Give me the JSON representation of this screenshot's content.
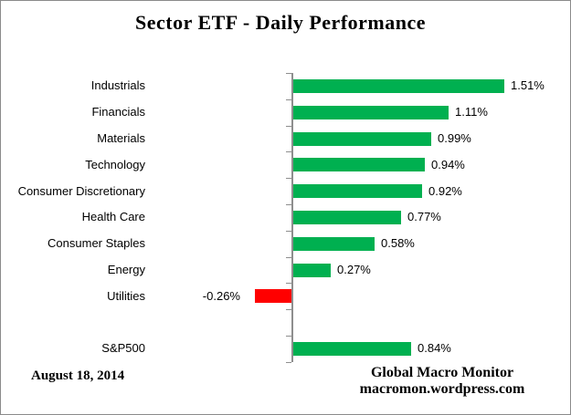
{
  "chart_data": {
    "type": "bar",
    "orientation": "horizontal",
    "title": "Sector ETF - Daily Performance",
    "categories": [
      "Industrials",
      "Financials",
      "Materials",
      "Technology",
      "Consumer Discretionary",
      "Health Care",
      "Consumer Staples",
      "Energy",
      "Utilities",
      "",
      "S&P500"
    ],
    "values": [
      1.51,
      1.11,
      0.99,
      0.94,
      0.92,
      0.77,
      0.58,
      0.27,
      -0.26,
      null,
      0.84
    ],
    "value_labels": [
      "1.51%",
      "1.11%",
      "0.99%",
      "0.94%",
      "0.92%",
      "0.77%",
      "0.58%",
      "0.27%",
      "-0.26%",
      null,
      "0.84%"
    ],
    "unit": "%",
    "positive_color": "#00B050",
    "negative_color": "#FF0000",
    "axis_color": "#8E8E8E",
    "xlim": [
      -1.05,
      1.9
    ],
    "grid": false,
    "legend": false
  },
  "footer": {
    "date": "August 18, 2014",
    "source_line1": "Global Macro Monitor",
    "source_line2": "macromon.wordpress.com"
  }
}
